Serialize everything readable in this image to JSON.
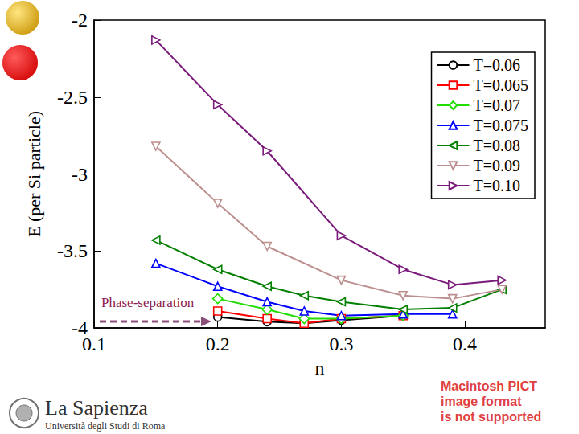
{
  "chart_data": {
    "type": "line",
    "xlabel": "n",
    "ylabel": "E (per Si particle)",
    "xlim": [
      0.1,
      0.465
    ],
    "xticks": [
      0.1,
      0.2,
      0.3,
      0.4
    ],
    "ylim": [
      -4,
      -2
    ],
    "yticks": [
      -4,
      -3.5,
      -3,
      -2.5,
      -2
    ],
    "grid": false,
    "legend": "upper right",
    "annotations": [
      "Phase-separation"
    ],
    "series": [
      {
        "name": "T=0.06",
        "color": "#000000",
        "marker": "circle",
        "x": [
          0.2,
          0.24,
          0.27,
          0.3,
          0.35
        ],
        "values": [
          -3.93,
          -3.96,
          -3.97,
          -3.95,
          -3.92
        ]
      },
      {
        "name": "T=0.065",
        "color": "#ff0000",
        "marker": "square",
        "x": [
          0.2,
          0.24,
          0.27,
          0.3,
          0.35
        ],
        "values": [
          -3.89,
          -3.94,
          -3.97,
          -3.94,
          -3.92
        ]
      },
      {
        "name": "T=0.07",
        "color": "#22dd00",
        "marker": "diamond",
        "x": [
          0.2,
          0.24,
          0.27,
          0.3,
          0.35
        ],
        "values": [
          -3.81,
          -3.88,
          -3.94,
          -3.94,
          -3.92
        ]
      },
      {
        "name": "T=0.075",
        "color": "#0000ff",
        "marker": "triangle_up",
        "x": [
          0.15,
          0.2,
          0.24,
          0.27,
          0.3,
          0.35,
          0.39
        ],
        "values": [
          -3.58,
          -3.73,
          -3.83,
          -3.89,
          -3.92,
          -3.91,
          -3.91
        ]
      },
      {
        "name": "T=0.08",
        "color": "#007f00",
        "marker": "triangle_left",
        "x": [
          0.15,
          0.2,
          0.24,
          0.27,
          0.3,
          0.35,
          0.39,
          0.43
        ],
        "values": [
          -3.43,
          -3.62,
          -3.73,
          -3.79,
          -3.83,
          -3.88,
          -3.87,
          -3.75
        ]
      },
      {
        "name": "T=0.09",
        "color": "#bc8f8f",
        "marker": "triangle_down",
        "x": [
          0.15,
          0.2,
          0.24,
          0.3,
          0.35,
          0.39,
          0.43
        ],
        "values": [
          -2.82,
          -3.19,
          -3.47,
          -3.69,
          -3.79,
          -3.81,
          -3.75
        ]
      },
      {
        "name": "T=0.10",
        "color": "#7a1a7a",
        "marker": "triangle_right",
        "x": [
          0.15,
          0.2,
          0.24,
          0.3,
          0.35,
          0.39,
          0.43
        ],
        "values": [
          -2.13,
          -2.55,
          -2.85,
          -3.4,
          -3.62,
          -3.72,
          -3.69
        ]
      }
    ]
  },
  "logo": {
    "title": "La Sapienza",
    "subtitle": "Università degli Studi di Roma"
  },
  "notice": [
    "Macintosh PICT",
    "image format",
    "is not supported"
  ]
}
